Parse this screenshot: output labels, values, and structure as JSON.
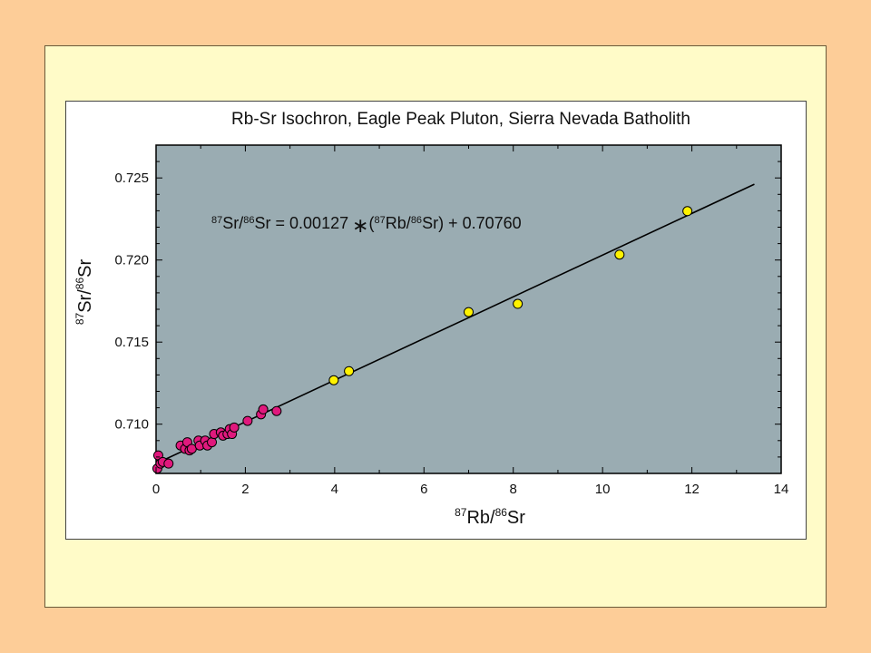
{
  "chart_data": {
    "type": "scatter",
    "title": "Rb-Sr Isochron, Eagle Peak Pluton, Sierra Nevada Batholith",
    "xlabel": {
      "pre": "87",
      "a": "Rb/",
      "sup": "86",
      "b": "Sr"
    },
    "ylabel": {
      "pre": "87",
      "a": "Sr/",
      "sup": "86",
      "b": "Sr"
    },
    "equation": {
      "p1": "87",
      "t1": "Sr/",
      "p2": "86",
      "t2": "Sr = 0.00127",
      "op": "∗",
      "t3": "(",
      "p3": "87",
      "t4": "Rb/",
      "p4": "86",
      "t5": "Sr) + 0.70760"
    },
    "xlim": [
      0,
      14
    ],
    "ylim": [
      0.707,
      0.727
    ],
    "xticks": [
      "0",
      "2",
      "4",
      "6",
      "8",
      "10",
      "12",
      "14"
    ],
    "yticks": [
      "0.710",
      "0.715",
      "0.720",
      "0.725"
    ],
    "grid": false,
    "colors": {
      "plot_bg": "#9aacb2",
      "magenta": "#e0197d",
      "yellow": "#fff200",
      "line": "#000000"
    },
    "fit_line": {
      "slope": 0.00127,
      "intercept": 0.7076,
      "x_range": [
        0,
        13.4
      ]
    },
    "series": [
      {
        "color": "#e0197d",
        "points": [
          [
            0.03,
            0.7073
          ],
          [
            0.05,
            0.7081
          ],
          [
            0.1,
            0.7076
          ],
          [
            0.15,
            0.7077
          ],
          [
            0.28,
            0.7076
          ],
          [
            0.55,
            0.7087
          ],
          [
            0.65,
            0.7085
          ],
          [
            0.7,
            0.7089
          ],
          [
            0.75,
            0.7084
          ],
          [
            0.8,
            0.7085
          ],
          [
            0.95,
            0.709
          ],
          [
            0.98,
            0.7087
          ],
          [
            1.1,
            0.709
          ],
          [
            1.15,
            0.7087
          ],
          [
            1.25,
            0.7089
          ],
          [
            1.3,
            0.7094
          ],
          [
            1.45,
            0.7095
          ],
          [
            1.5,
            0.7093
          ],
          [
            1.6,
            0.7094
          ],
          [
            1.65,
            0.7097
          ],
          [
            1.7,
            0.7094
          ],
          [
            1.75,
            0.7098
          ],
          [
            2.05,
            0.7102
          ],
          [
            2.35,
            0.7106
          ],
          [
            2.4,
            0.7109
          ],
          [
            2.7,
            0.7108
          ]
        ]
      },
      {
        "color": "#fff200",
        "points": [
          [
            3.98,
            0.71268
          ],
          [
            4.32,
            0.71323
          ],
          [
            7.0,
            0.71683
          ],
          [
            8.1,
            0.71733
          ],
          [
            10.38,
            0.72033
          ],
          [
            11.9,
            0.72298
          ]
        ]
      }
    ]
  }
}
